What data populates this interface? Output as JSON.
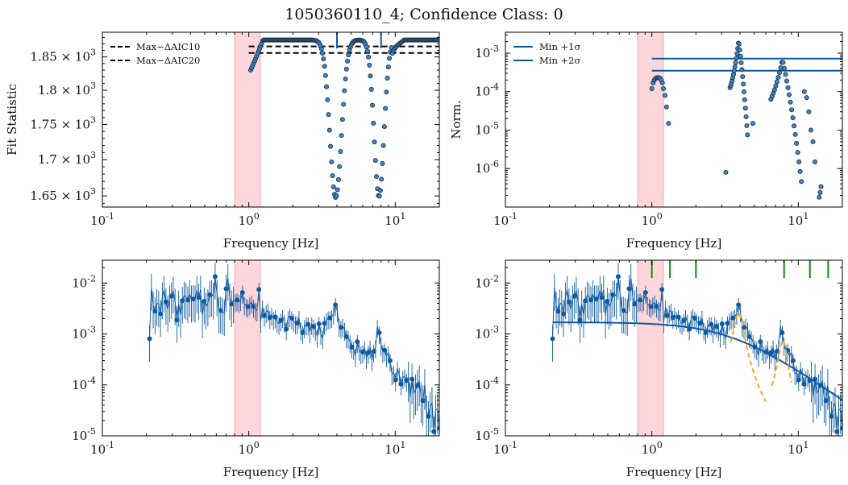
{
  "title": "1050360110_4; Confidence Class: 0",
  "colors": {
    "series": "#0d5aa3",
    "marker_fill": "#3d86c8",
    "marker_edge": "#1b2a3a",
    "span": "#ff9aa2",
    "lorentz": "#f5a623",
    "peak_ticks": "#108a10",
    "threshold": "#000000"
  },
  "chart_data": [
    {
      "id": "fit-statistic",
      "type": "scatter",
      "xlabel": "Frequency [Hz]",
      "ylabel": "Fit Statistic",
      "xscale": "log",
      "yscale": "log",
      "xlim": [
        0.1,
        20
      ],
      "ylim": [
        1635,
        1888
      ],
      "xticklabels": [
        "10^-1",
        "10^0",
        "10^1"
      ],
      "yticks": [
        1650,
        1700,
        1750,
        1800,
        1850
      ],
      "yticklabels": [
        "1.65 × 10^3",
        "1.7 × 10^3",
        "1.75 × 10^3",
        "1.8 × 10^3",
        "1.85 × 10^3"
      ],
      "shaded_span": [
        0.8,
        1.2
      ],
      "hlines": [
        {
          "name": "Max−ΔAIC10",
          "y": 1866,
          "style": "dashed",
          "x_range": [
            1.0,
            20
          ]
        },
        {
          "name": "Max−ΔAIC20",
          "y": 1856,
          "style": "dashed",
          "x_range": [
            1.0,
            20
          ]
        }
      ],
      "legend": {
        "entries": [
          "Max−ΔAIC10",
          "Max−ΔAIC20"
        ],
        "position": "upper-left"
      },
      "peak_markers": [
        4.0,
        8.0
      ],
      "baseline": 1876,
      "dips": [
        {
          "center": 3.92,
          "width": 0.1,
          "min": 1648
        },
        {
          "center": 7.75,
          "width": 0.085,
          "min": 1649
        }
      ],
      "x_range": [
        1.03,
        20
      ],
      "points": 190
    },
    {
      "id": "normalization",
      "type": "scatter",
      "xlabel": "Frequency [Hz]",
      "ylabel": "Norm.",
      "xscale": "log",
      "yscale": "log",
      "xlim": [
        0.1,
        20
      ],
      "ylim": [
        1e-07,
        0.0035
      ],
      "xticklabels": [
        "10^-1",
        "10^0",
        "10^1"
      ],
      "yticklabels": [
        "10^-6",
        "10^-5",
        "10^-4",
        "10^-3"
      ],
      "shaded_span": [
        0.8,
        1.2
      ],
      "hlines": [
        {
          "name": "Min +1σ",
          "y": 0.00072,
          "x_range": [
            1.0,
            20
          ]
        },
        {
          "name": "Min +2σ",
          "y": 0.00035,
          "x_range": [
            1.0,
            20
          ]
        }
      ],
      "legend": {
        "entries": [
          "Min +1σ",
          "Min +2σ"
        ],
        "position": "upper-left"
      },
      "segments": [
        {
          "x": [
            1.0,
            1.02,
            1.04,
            1.06,
            1.08,
            1.1,
            1.12,
            1.14,
            1.16,
            1.18,
            1.2,
            1.23,
            1.26,
            1.3
          ],
          "y": [
            0.00012,
            0.00017,
            0.0002,
            0.00022,
            0.00023,
            0.00023,
            0.00023,
            0.00022,
            0.0002,
            0.00017,
            0.00012,
            8e-05,
            4e-05,
            1.5e-05
          ]
        },
        {
          "x": [
            3.2
          ],
          "y": [
            8e-07
          ]
        },
        {
          "peak_center": 3.92,
          "peak_y": 0.0021,
          "x_range": [
            3.42,
            4.5
          ],
          "min_y": 3e-05
        },
        {
          "x": [
            4.9
          ],
          "y": [
            1.5e-05
          ]
        },
        {
          "peak_center": 7.8,
          "peak_y": 0.00068,
          "x_range": [
            6.5,
            10.5
          ],
          "min_y": 1e-05
        },
        {
          "x": [
            11.0,
            11.4,
            11.8,
            12.2,
            12.6,
            13.0
          ],
          "y": [
            0.0001,
            7e-05,
            3e-05,
            1e-05,
            5e-06,
            1.5e-06
          ]
        },
        {
          "x": [
            13.9,
            14.1,
            14.3
          ],
          "y": [
            1.8e-07,
            2.4e-07,
            3.4e-07
          ]
        }
      ]
    },
    {
      "id": "power-spectrum",
      "type": "scatter",
      "xlabel": "Frequency [Hz]",
      "ylabel": "",
      "xscale": "log",
      "yscale": "log",
      "xlim": [
        0.1,
        20
      ],
      "ylim": [
        1e-05,
        0.028
      ],
      "xticklabels": [
        "10^-1",
        "10^0",
        "10^1"
      ],
      "yticklabels": [
        "10^-5",
        "10^-4",
        "10^-3",
        "10^-2"
      ],
      "shaded_span": [
        0.8,
        1.2
      ],
      "error_bars": true,
      "x_range": [
        0.21,
        20
      ],
      "points": 160
    },
    {
      "id": "power-spectrum-model",
      "type": "scatter",
      "xlabel": "Frequency [Hz]",
      "ylabel": "",
      "xscale": "log",
      "yscale": "log",
      "xlim": [
        0.1,
        20
      ],
      "ylim": [
        1e-05,
        0.028
      ],
      "xticklabels": [
        "10^-1",
        "10^0",
        "10^1"
      ],
      "yticklabels": [
        "10^-5",
        "10^-4",
        "10^-3",
        "10^-2"
      ],
      "shaded_span": [
        0.8,
        1.2
      ],
      "error_bars": true,
      "x_range": [
        0.21,
        20
      ],
      "points": 160,
      "model_curve": {
        "norm": 0.0017,
        "break_freq": 3.5,
        "x_range": [
          0.21,
          20
        ]
      },
      "lorentzians": [
        {
          "center": 3.92,
          "peak": 0.0026,
          "hwhm": 0.28,
          "x_range": [
            3.45,
            6.0
          ]
        },
        {
          "center": 7.85,
          "peak": 0.00075,
          "hwhm": 0.48,
          "x_range": [
            6.6,
            9.0
          ]
        }
      ],
      "green_ticks": [
        1.0,
        1.33,
        2.0,
        8.0,
        12.0,
        16.0
      ]
    }
  ]
}
